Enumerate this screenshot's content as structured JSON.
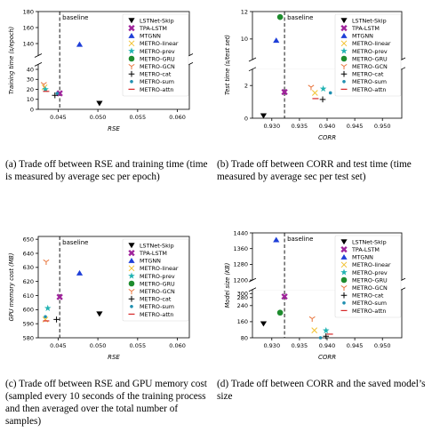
{
  "colors": {
    "LSTNet-Skip": "#000000",
    "TPA-LSTM": "#a0249c",
    "MTGNN": "#1f3fd8",
    "METRO-linear": "#f2c230",
    "METRO-prev": "#22b3b3",
    "METRO-GRU": "#1e8c2e",
    "METRO-GCN": "#e8743b",
    "METRO-cat": "#000000",
    "METRO-sum": "#1f8fb0",
    "METRO-attn": "#d62728"
  },
  "chart_data": [
    {
      "id": "a",
      "type": "scatter",
      "xlabel": "RSE",
      "ylabel": "Training time (s/epoch)",
      "xlim": [
        0.0425,
        0.0615
      ],
      "xticks": [
        0.045,
        0.05,
        0.055,
        0.06
      ],
      "xtick_labels": [
        "0.045",
        "0.050",
        "0.055",
        "0.060"
      ],
      "y_break": {
        "lower": [
          0,
          45
        ],
        "upper": [
          125,
          180
        ]
      },
      "yticks": [
        0,
        10,
        20,
        30,
        40,
        140,
        160,
        180
      ],
      "baseline": {
        "x": 0.0452,
        "label": "baseline"
      },
      "points": [
        {
          "series": "LSTNet-Skip",
          "x": 0.0502,
          "y": 6
        },
        {
          "series": "TPA-LSTM",
          "x": 0.0452,
          "y": 16
        },
        {
          "series": "MTGNN",
          "x": 0.0477,
          "y": 139
        },
        {
          "series": "METRO-linear",
          "x": 0.0433,
          "y": 22
        },
        {
          "series": "METRO-prev",
          "x": 0.0434,
          "y": 20
        },
        {
          "series": "METRO-GRU",
          "x": 0.061,
          "y": 170
        },
        {
          "series": "METRO-GCN",
          "x": 0.0432,
          "y": 25
        },
        {
          "series": "METRO-cat",
          "x": 0.0446,
          "y": 14
        },
        {
          "series": "METRO-sum",
          "x": 0.0449,
          "y": 16
        },
        {
          "series": "METRO-attn",
          "x": 0.0435,
          "y": 18
        }
      ]
    },
    {
      "id": "b",
      "type": "scatter",
      "xlabel": "CORR",
      "ylabel": "Test time (s/test set)",
      "xlim": [
        0.9265,
        0.9535
      ],
      "xticks": [
        0.93,
        0.935,
        0.94,
        0.945,
        0.95
      ],
      "xtick_labels": [
        "0.930",
        "0.935",
        "0.940",
        "0.945",
        "0.950"
      ],
      "y_break": {
        "lower": [
          0,
          3
        ],
        "upper": [
          8.5,
          12
        ]
      },
      "yticks": [
        0,
        2,
        10,
        12
      ],
      "baseline": {
        "x": 0.9323,
        "label": "baseline"
      },
      "points": [
        {
          "series": "LSTNet-Skip",
          "x": 0.9285,
          "y": 0.15
        },
        {
          "series": "TPA-LSTM",
          "x": 0.9323,
          "y": 1.6
        },
        {
          "series": "MTGNN",
          "x": 0.9308,
          "y": 9.9
        },
        {
          "series": "METRO-linear",
          "x": 0.9378,
          "y": 1.55
        },
        {
          "series": "METRO-prev",
          "x": 0.9393,
          "y": 1.8
        },
        {
          "series": "METRO-GRU",
          "x": 0.9315,
          "y": 11.6
        },
        {
          "series": "METRO-GCN",
          "x": 0.9371,
          "y": 1.9
        },
        {
          "series": "METRO-cat",
          "x": 0.9392,
          "y": 1.15
        },
        {
          "series": "METRO-sum",
          "x": 0.9406,
          "y": 1.55
        },
        {
          "series": "METRO-attn",
          "x": 0.9379,
          "y": 1.2
        }
      ]
    },
    {
      "id": "c",
      "type": "scatter",
      "xlabel": "RSE",
      "ylabel": "GPU memory cost (MB)",
      "xlim": [
        0.0425,
        0.0615
      ],
      "xticks": [
        0.045,
        0.05,
        0.055,
        0.06
      ],
      "xtick_labels": [
        "0.045",
        "0.050",
        "0.055",
        "0.060"
      ],
      "ylim": [
        580,
        652
      ],
      "yticks": [
        580,
        590,
        600,
        610,
        620,
        630,
        640,
        650
      ],
      "baseline": {
        "x": 0.0452,
        "label": "baseline"
      },
      "points": [
        {
          "series": "LSTNet-Skip",
          "x": 0.0502,
          "y": 597
        },
        {
          "series": "TPA-LSTM",
          "x": 0.0452,
          "y": 609
        },
        {
          "series": "MTGNN",
          "x": 0.0477,
          "y": 626
        },
        {
          "series": "METRO-linear",
          "x": 0.0434,
          "y": 593
        },
        {
          "series": "METRO-prev",
          "x": 0.0437,
          "y": 601
        },
        {
          "series": "METRO-GRU",
          "x": 0.061,
          "y": 647
        },
        {
          "series": "METRO-GCN",
          "x": 0.0435,
          "y": 634
        },
        {
          "series": "METRO-cat",
          "x": 0.0448,
          "y": 593
        },
        {
          "series": "METRO-sum",
          "x": 0.0434,
          "y": 595
        },
        {
          "series": "METRO-attn",
          "x": 0.0435,
          "y": 592
        }
      ]
    },
    {
      "id": "d",
      "type": "scatter",
      "xlabel": "CORR",
      "ylabel": "Model size (KB)",
      "xlim": [
        0.9265,
        0.9535
      ],
      "xticks": [
        0.93,
        0.935,
        0.94,
        0.945,
        0.95
      ],
      "xtick_labels": [
        "0.930",
        "0.935",
        "0.940",
        "0.945",
        "0.950"
      ],
      "y_break": {
        "lower": [
          80,
          320
        ],
        "upper": [
          1200,
          1440
        ]
      },
      "yticks": [
        80,
        160,
        240,
        280,
        300,
        1200,
        1280,
        1360,
        1440
      ],
      "baseline": {
        "x": 0.9323,
        "label": "baseline"
      },
      "points": [
        {
          "series": "LSTNet-Skip",
          "x": 0.9285,
          "y": 150
        },
        {
          "series": "TPA-LSTM",
          "x": 0.9323,
          "y": 285
        },
        {
          "series": "MTGNN",
          "x": 0.9308,
          "y": 1405
        },
        {
          "series": "METRO-linear",
          "x": 0.9377,
          "y": 117
        },
        {
          "series": "METRO-prev",
          "x": 0.9398,
          "y": 116
        },
        {
          "series": "METRO-GRU",
          "x": 0.9315,
          "y": 205
        },
        {
          "series": "METRO-GCN",
          "x": 0.9373,
          "y": 175
        },
        {
          "series": "METRO-cat",
          "x": 0.9398,
          "y": 88
        },
        {
          "series": "METRO-sum",
          "x": 0.9388,
          "y": 80
        },
        {
          "series": "METRO-attn",
          "x": 0.9405,
          "y": 98
        }
      ]
    }
  ],
  "legend": [
    {
      "label": "LSTNet-Skip",
      "marker": "tri-down"
    },
    {
      "label": "TPA-LSTM",
      "marker": "x-thick"
    },
    {
      "label": "MTGNN",
      "marker": "tri-up"
    },
    {
      "label": "METRO-linear",
      "marker": "x"
    },
    {
      "label": "METRO-prev",
      "marker": "star"
    },
    {
      "label": "METRO-GRU",
      "marker": "circle"
    },
    {
      "label": "METRO-GCN",
      "marker": "tri-y"
    },
    {
      "label": "METRO-cat",
      "marker": "plus"
    },
    {
      "label": "METRO-sum",
      "marker": "dot"
    },
    {
      "label": "METRO-attn",
      "marker": "hline"
    }
  ],
  "captions": {
    "a": "(a)  Trade off between RSE and training time (time is measured by average sec per epoch)",
    "b": "(b)  Trade off between CORR and test time (time measured by average sec per test set)",
    "c": "(c)  Trade off between RSE and GPU memory cost (sampled every 10 seconds of the training process and then averaged over the total number of samples)",
    "d": "(d)  Trade off between CORR and the saved model’s size"
  }
}
